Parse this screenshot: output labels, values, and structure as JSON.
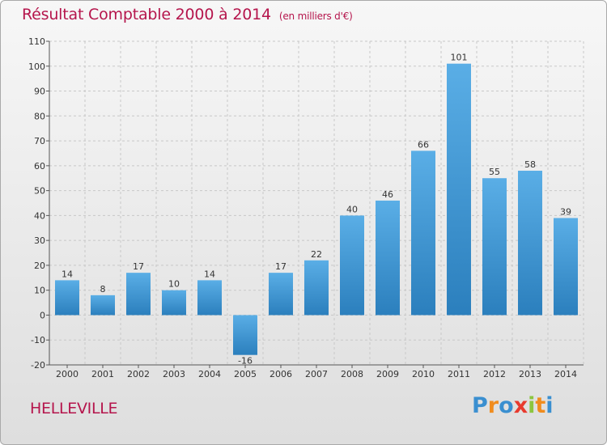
{
  "chart_data": {
    "type": "bar",
    "title": "Résultat Comptable 2000 à 2014",
    "subtitle": "(en milliers d'€)",
    "categories": [
      "2000",
      "2001",
      "2002",
      "2003",
      "2004",
      "2005",
      "2006",
      "2007",
      "2008",
      "2009",
      "2010",
      "2011",
      "2012",
      "2013",
      "2014"
    ],
    "values": [
      14,
      8,
      17,
      10,
      14,
      -16,
      17,
      22,
      40,
      46,
      66,
      101,
      55,
      58,
      39
    ],
    "ylim": [
      -20,
      110
    ],
    "yticks": [
      -20,
      -10,
      0,
      10,
      20,
      30,
      40,
      50,
      60,
      70,
      80,
      90,
      100,
      110
    ],
    "grid": true,
    "bar_color_top": "#5aaee6",
    "bar_color_bottom": "#2b7fbd"
  },
  "footer": {
    "commune": "HELLEVILLE",
    "logo_letters": [
      "P",
      "r",
      "o",
      "x",
      "i",
      "t",
      "i"
    ],
    "logo_colors": [
      "#3a8fd0",
      "#f08c1e",
      "#3a8fd0",
      "#e83a2e",
      "#8cc63f",
      "#f08c1e",
      "#3a8fd0"
    ]
  },
  "colors": {
    "title": "#b5154c",
    "grid": "#c8c8c8",
    "axis": "#555555"
  }
}
